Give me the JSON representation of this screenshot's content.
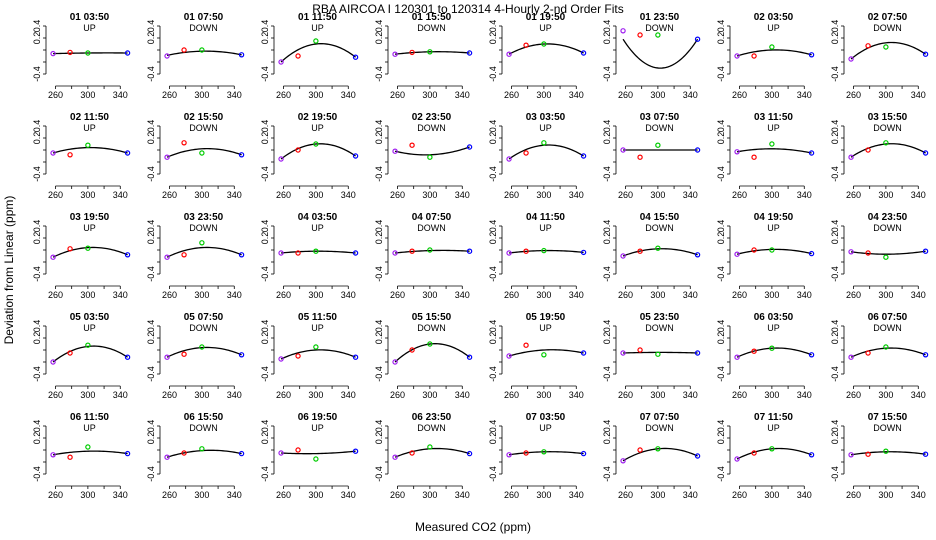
{
  "chart_data": {
    "type": "scatter",
    "title": "RBA   AIRCOA I   120301 to 120314   4-Hourly 2-nd Order Fits",
    "xlabel": "Measured CO2 (ppm)",
    "ylabel": "Deviation from Linear (ppm)",
    "xlim": [
      252,
      352
    ],
    "ylim": [
      -0.55,
      0.45
    ],
    "x_ticks": [
      260,
      280,
      300,
      320,
      340
    ],
    "x_tick_labels": [
      "260",
      "300",
      "340"
    ],
    "y_ticks": [
      -0.4,
      -0.2,
      0.0,
      0.2,
      0.4
    ],
    "y_tick_labels": [
      "-0.4",
      "0.2",
      "0.4"
    ],
    "point_x": [
      257,
      278,
      300,
      349
    ],
    "point_colors": [
      "#a020f0",
      "#ff0000",
      "#00cc00",
      "#0000ff"
    ],
    "curve_color": "#000000",
    "panels": [
      {
        "label": "01 03:50",
        "dir": "UP",
        "y": [
          -0.06,
          -0.04,
          -0.05,
          -0.05
        ],
        "fit": [
          -0.06,
          -0.05,
          -0.05,
          -0.05
        ]
      },
      {
        "label": "01 07:50",
        "dir": "DOWN",
        "y": [
          -0.1,
          0.0,
          0.0,
          -0.08
        ],
        "fit": [
          -0.09,
          -0.04,
          -0.02,
          -0.08
        ]
      },
      {
        "label": "01 11:50",
        "dir": "UP",
        "y": [
          -0.2,
          -0.1,
          0.15,
          -0.12
        ],
        "fit": [
          -0.2,
          0.02,
          0.1,
          -0.12
        ]
      },
      {
        "label": "01 15:50",
        "dir": "DOWN",
        "y": [
          -0.07,
          -0.04,
          -0.03,
          -0.05
        ],
        "fit": [
          -0.07,
          -0.05,
          -0.03,
          -0.05
        ]
      },
      {
        "label": "01 19:50",
        "dir": "UP",
        "y": [
          -0.07,
          0.08,
          0.1,
          -0.05
        ],
        "fit": [
          -0.07,
          0.06,
          0.1,
          -0.05
        ]
      },
      {
        "label": "01 23:50",
        "dir": "DOWN",
        "y": [
          0.32,
          0.25,
          0.25,
          0.18
        ],
        "fit": [
          0.18,
          -0.17,
          -0.3,
          0.18
        ]
      },
      {
        "label": "02 03:50",
        "dir": "UP",
        "y": [
          -0.1,
          -0.1,
          0.05,
          -0.08
        ],
        "fit": [
          -0.1,
          -0.03,
          0.0,
          -0.08
        ]
      },
      {
        "label": "02 07:50",
        "dir": "DOWN",
        "y": [
          -0.15,
          0.07,
          0.05,
          -0.07
        ],
        "fit": [
          -0.15,
          0.05,
          0.12,
          -0.07
        ]
      },
      {
        "label": "02 11:50",
        "dir": "UP",
        "y": [
          -0.05,
          -0.08,
          0.08,
          -0.05
        ],
        "fit": [
          -0.05,
          0.0,
          0.04,
          -0.05
        ]
      },
      {
        "label": "02 15:50",
        "dir": "DOWN",
        "y": [
          -0.12,
          0.12,
          -0.05,
          -0.08
        ],
        "fit": [
          -0.12,
          0.0,
          0.02,
          -0.08
        ]
      },
      {
        "label": "02 19:50",
        "dir": "UP",
        "y": [
          -0.15,
          0.0,
          0.1,
          -0.1
        ],
        "fit": [
          -0.15,
          0.02,
          0.1,
          -0.1
        ]
      },
      {
        "label": "02 23:50",
        "dir": "DOWN",
        "y": [
          -0.02,
          0.08,
          -0.12,
          0.05
        ],
        "fit": [
          -0.02,
          -0.06,
          -0.08,
          0.05
        ]
      },
      {
        "label": "03 03:50",
        "dir": "UP",
        "y": [
          -0.15,
          -0.05,
          0.12,
          -0.1
        ],
        "fit": [
          -0.15,
          0.02,
          0.08,
          -0.1
        ]
      },
      {
        "label": "03 07:50",
        "dir": "DOWN",
        "y": [
          0.0,
          -0.12,
          0.08,
          0.0
        ],
        "fit": [
          0.0,
          0.0,
          0.0,
          0.0
        ]
      },
      {
        "label": "03 11:50",
        "dir": "UP",
        "y": [
          -0.03,
          -0.12,
          0.1,
          -0.05
        ],
        "fit": [
          -0.03,
          0.0,
          0.02,
          -0.05
        ]
      },
      {
        "label": "03 15:50",
        "dir": "DOWN",
        "y": [
          -0.12,
          0.0,
          0.12,
          -0.05
        ],
        "fit": [
          -0.12,
          0.05,
          0.1,
          -0.05
        ]
      },
      {
        "label": "03 19:50",
        "dir": "UP",
        "y": [
          -0.12,
          0.02,
          0.03,
          -0.08
        ],
        "fit": [
          -0.12,
          0.0,
          0.04,
          -0.08
        ]
      },
      {
        "label": "03 23:50",
        "dir": "DOWN",
        "y": [
          -0.12,
          -0.08,
          0.12,
          -0.08
        ],
        "fit": [
          -0.12,
          -0.01,
          0.04,
          -0.08
        ]
      },
      {
        "label": "04 03:50",
        "dir": "UP",
        "y": [
          -0.05,
          -0.05,
          -0.02,
          -0.05
        ],
        "fit": [
          -0.05,
          -0.03,
          -0.02,
          -0.05
        ]
      },
      {
        "label": "04 07:50",
        "dir": "DOWN",
        "y": [
          -0.05,
          -0.02,
          0.0,
          -0.02
        ],
        "fit": [
          -0.05,
          -0.02,
          -0.01,
          -0.02
        ]
      },
      {
        "label": "04 11:50",
        "dir": "UP",
        "y": [
          -0.05,
          -0.02,
          -0.01,
          -0.04
        ],
        "fit": [
          -0.05,
          -0.02,
          -0.01,
          -0.04
        ]
      },
      {
        "label": "04 15:50",
        "dir": "DOWN",
        "y": [
          -0.1,
          -0.02,
          0.03,
          -0.08
        ],
        "fit": [
          -0.1,
          -0.01,
          0.02,
          -0.08
        ]
      },
      {
        "label": "04 19:50",
        "dir": "UP",
        "y": [
          -0.07,
          0.0,
          0.0,
          -0.06
        ],
        "fit": [
          -0.07,
          -0.01,
          0.01,
          -0.06
        ]
      },
      {
        "label": "04 23:50",
        "dir": "DOWN",
        "y": [
          -0.03,
          -0.05,
          -0.12,
          -0.02
        ],
        "fit": [
          -0.03,
          -0.06,
          -0.07,
          -0.02
        ]
      },
      {
        "label": "05 03:50",
        "dir": "UP",
        "y": [
          -0.2,
          -0.05,
          0.08,
          -0.12
        ],
        "fit": [
          -0.2,
          0.0,
          0.06,
          -0.12
        ]
      },
      {
        "label": "05 07:50",
        "dir": "DOWN",
        "y": [
          -0.12,
          -0.07,
          0.05,
          -0.08
        ],
        "fit": [
          -0.12,
          0.0,
          0.04,
          -0.08
        ]
      },
      {
        "label": "05 11:50",
        "dir": "UP",
        "y": [
          -0.15,
          -0.1,
          0.05,
          -0.12
        ],
        "fit": [
          -0.15,
          -0.04,
          0.0,
          -0.12
        ]
      },
      {
        "label": "05 15:50",
        "dir": "DOWN",
        "y": [
          -0.2,
          0.0,
          0.1,
          -0.12
        ],
        "fit": [
          -0.2,
          0.04,
          0.1,
          -0.12
        ]
      },
      {
        "label": "05 19:50",
        "dir": "UP",
        "y": [
          -0.1,
          0.08,
          -0.08,
          -0.05
        ],
        "fit": [
          -0.1,
          -0.02,
          0.0,
          -0.05
        ]
      },
      {
        "label": "05 23:50",
        "dir": "DOWN",
        "y": [
          -0.05,
          0.0,
          -0.07,
          -0.05
        ],
        "fit": [
          -0.05,
          -0.04,
          -0.04,
          -0.05
        ]
      },
      {
        "label": "06 03:50",
        "dir": "UP",
        "y": [
          -0.12,
          -0.02,
          0.03,
          -0.08
        ],
        "fit": [
          -0.12,
          -0.01,
          0.03,
          -0.08
        ]
      },
      {
        "label": "06 07:50",
        "dir": "DOWN",
        "y": [
          -0.12,
          -0.05,
          0.05,
          -0.08
        ],
        "fit": [
          -0.12,
          -0.01,
          0.03,
          -0.08
        ]
      },
      {
        "label": "06 11:50",
        "dir": "UP",
        "y": [
          -0.08,
          -0.12,
          0.05,
          -0.06
        ],
        "fit": [
          -0.08,
          -0.03,
          -0.02,
          -0.06
        ]
      },
      {
        "label": "06 15:50",
        "dir": "DOWN",
        "y": [
          -0.12,
          -0.05,
          0.02,
          -0.06
        ],
        "fit": [
          -0.12,
          -0.04,
          -0.01,
          -0.06
        ]
      },
      {
        "label": "06 19:50",
        "dir": "UP",
        "y": [
          -0.05,
          0.0,
          -0.15,
          -0.02
        ],
        "fit": [
          -0.05,
          -0.05,
          -0.06,
          -0.02
        ]
      },
      {
        "label": "06 23:50",
        "dir": "DOWN",
        "y": [
          -0.12,
          -0.05,
          0.05,
          -0.06
        ],
        "fit": [
          -0.12,
          -0.02,
          0.02,
          -0.06
        ]
      },
      {
        "label": "07 03:50",
        "dir": "UP",
        "y": [
          -0.08,
          -0.05,
          -0.03,
          -0.06
        ],
        "fit": [
          -0.08,
          -0.05,
          -0.03,
          -0.06
        ]
      },
      {
        "label": "07 07:50",
        "dir": "DOWN",
        "y": [
          -0.18,
          0.0,
          0.02,
          -0.1
        ],
        "fit": [
          -0.18,
          -0.03,
          0.02,
          -0.1
        ]
      },
      {
        "label": "07 11:50",
        "dir": "UP",
        "y": [
          -0.15,
          -0.05,
          0.02,
          -0.08
        ],
        "fit": [
          -0.15,
          -0.03,
          0.02,
          -0.08
        ]
      },
      {
        "label": "07 15:50",
        "dir": "DOWN",
        "y": [
          -0.08,
          -0.07,
          -0.02,
          -0.07
        ],
        "fit": [
          -0.08,
          -0.04,
          -0.03,
          -0.07
        ]
      }
    ]
  }
}
